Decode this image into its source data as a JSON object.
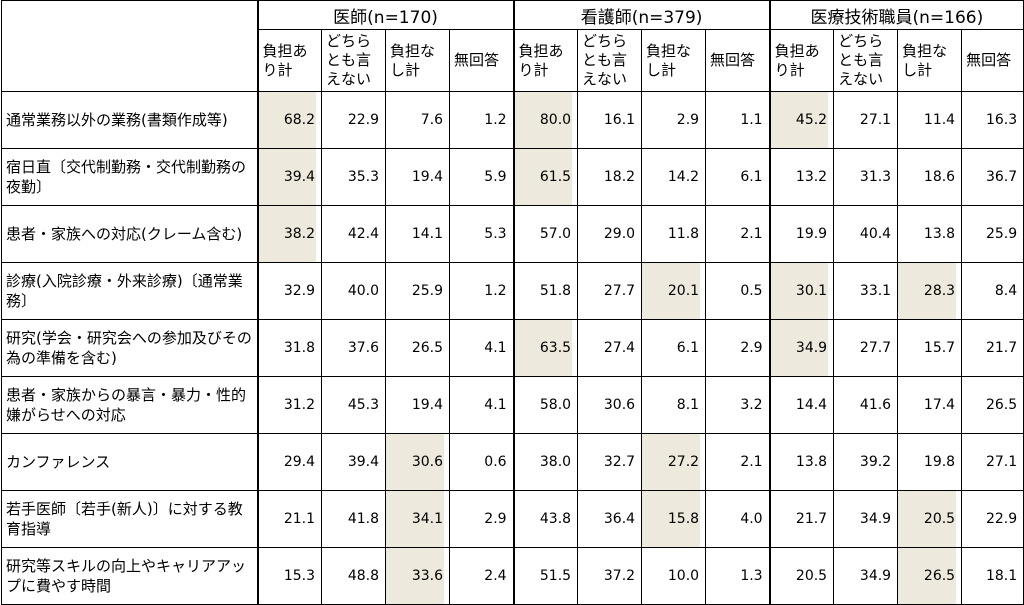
{
  "highlight_color": "#ede9dd",
  "groups": [
    {
      "title": "医師(n=170)"
    },
    {
      "title": "看護師(n=379)"
    },
    {
      "title": "医療技術職員(n=166)"
    }
  ],
  "subheaders": [
    "負担あり計",
    "どちらとも言えない",
    "負担なし計",
    "無回答"
  ],
  "rows": [
    {
      "label": "通常業務以外の業務(書類作成等)",
      "values": [
        "68.2",
        "22.9",
        "7.6",
        "1.2",
        "80.0",
        "16.1",
        "2.9",
        "1.1",
        "45.2",
        "27.1",
        "11.4",
        "16.3"
      ],
      "highlight": [
        0,
        4,
        8
      ]
    },
    {
      "label": "宿日直〔交代制勤務・交代制勤務の夜勤〕",
      "values": [
        "39.4",
        "35.3",
        "19.4",
        "5.9",
        "61.5",
        "18.2",
        "14.2",
        "6.1",
        "13.2",
        "31.3",
        "18.6",
        "36.7"
      ],
      "highlight": [
        0,
        4
      ]
    },
    {
      "label": "患者・家族への対応(クレーム含む)",
      "values": [
        "38.2",
        "42.4",
        "14.1",
        "5.3",
        "57.0",
        "29.0",
        "11.8",
        "2.1",
        "19.9",
        "40.4",
        "13.8",
        "25.9"
      ],
      "highlight": [
        0
      ]
    },
    {
      "label": "診療(入院診療・外来診療)〔通常業務〕",
      "values": [
        "32.9",
        "40.0",
        "25.9",
        "1.2",
        "51.8",
        "27.7",
        "20.1",
        "0.5",
        "30.1",
        "33.1",
        "28.3",
        "8.4"
      ],
      "highlight": [
        6,
        8,
        10
      ]
    },
    {
      "label": "研究(学会・研究会への参加及びその為の準備を含む)",
      "values": [
        "31.8",
        "37.6",
        "26.5",
        "4.1",
        "63.5",
        "27.4",
        "6.1",
        "2.9",
        "34.9",
        "27.7",
        "15.7",
        "21.7"
      ],
      "highlight": [
        4,
        8
      ]
    },
    {
      "label": "患者・家族からの暴言・暴力・性的嫌がらせへの対応",
      "values": [
        "31.2",
        "45.3",
        "19.4",
        "4.1",
        "58.0",
        "30.6",
        "8.1",
        "3.2",
        "14.4",
        "41.6",
        "17.4",
        "26.5"
      ],
      "highlight": []
    },
    {
      "label": "カンファレンス",
      "values": [
        "29.4",
        "39.4",
        "30.6",
        "0.6",
        "38.0",
        "32.7",
        "27.2",
        "2.1",
        "13.8",
        "39.2",
        "19.8",
        "27.1"
      ],
      "highlight": [
        2,
        6
      ]
    },
    {
      "label": "若手医師〔若手(新人)〕に対する教育指導",
      "values": [
        "21.1",
        "41.8",
        "34.1",
        "2.9",
        "43.8",
        "36.4",
        "15.8",
        "4.0",
        "21.7",
        "34.9",
        "20.5",
        "22.9"
      ],
      "highlight": [
        2,
        6,
        10
      ]
    },
    {
      "label": "研究等スキルの向上やキャリアアップに費やす時間",
      "values": [
        "15.3",
        "48.8",
        "33.6",
        "2.4",
        "51.5",
        "37.2",
        "10.0",
        "1.3",
        "20.5",
        "34.9",
        "26.5",
        "18.1"
      ],
      "highlight": [
        2,
        10
      ]
    }
  ]
}
